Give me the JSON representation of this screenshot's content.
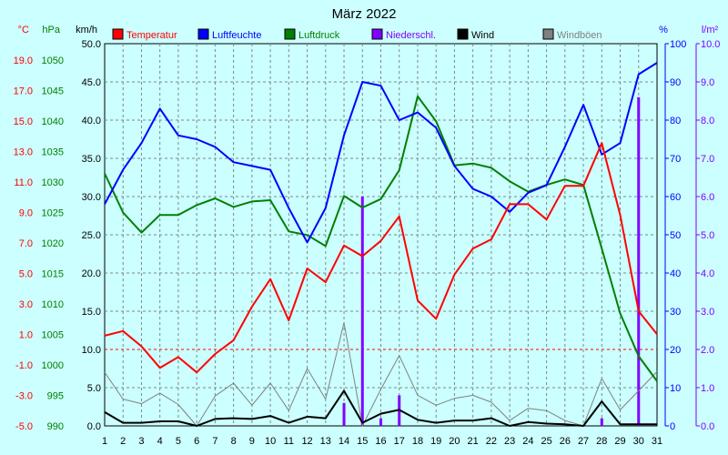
{
  "chart_data": {
    "type": "line",
    "title": "März 2022",
    "x": [
      1,
      2,
      3,
      4,
      5,
      6,
      7,
      8,
      9,
      10,
      11,
      12,
      13,
      14,
      15,
      16,
      17,
      18,
      19,
      20,
      21,
      22,
      23,
      24,
      25,
      26,
      27,
      28,
      29,
      30,
      31
    ],
    "axes": {
      "temperature": {
        "unit": "°C",
        "ticks": [
          "19.0",
          "17.0",
          "15.0",
          "13.0",
          "11.0",
          "9.0",
          "7.0",
          "5.0",
          "3.0",
          "1.0",
          "-1.0",
          "-3.0",
          "-5.0"
        ],
        "range": [
          -5,
          20
        ],
        "color": "#ff0000"
      },
      "pressure": {
        "unit": "hPa",
        "ticks": [
          "1050",
          "1045",
          "1040",
          "1035",
          "1030",
          "1025",
          "1020",
          "1015",
          "1010",
          "1005",
          "1000",
          "995",
          "990"
        ],
        "range": [
          990,
          1052.5
        ],
        "color": "#008000"
      },
      "wind": {
        "unit": "km/h",
        "ticks": [
          "50.0",
          "45.0",
          "40.0",
          "35.0",
          "30.0",
          "25.0",
          "20.0",
          "15.0",
          "10.0",
          "5.0",
          "0.0"
        ],
        "range": [
          0,
          50
        ],
        "color": "#000000"
      },
      "humidity": {
        "unit": "%",
        "ticks": [
          "100",
          "90",
          "80",
          "70",
          "60",
          "50",
          "40",
          "30",
          "20",
          "10",
          "0"
        ],
        "range": [
          0,
          100
        ],
        "color": "#0000ff"
      },
      "precipitation": {
        "unit": "l/m²",
        "ticks": [
          "10.0",
          "9.0",
          "8.0",
          "7.0",
          "6.0",
          "5.0",
          "4.0",
          "3.0",
          "2.0",
          "1.0",
          "0.0"
        ],
        "range": [
          0,
          10
        ],
        "color": "#8000ff"
      }
    },
    "series": [
      {
        "name": "Temperatur",
        "axis": "temperature",
        "color": "#ff0000",
        "kind": "line",
        "values": [
          0.9,
          1.2,
          0.2,
          -1.2,
          -0.5,
          -1.5,
          -0.3,
          0.6,
          2.8,
          4.6,
          1.9,
          5.3,
          4.4,
          6.8,
          6.1,
          7.1,
          8.7,
          3.2,
          2.0,
          4.9,
          6.6,
          7.2,
          9.5,
          9.5,
          8.5,
          10.7,
          10.7,
          13.5,
          8.8,
          2.5,
          1.0
        ]
      },
      {
        "name": "Luftfeuchte",
        "axis": "humidity",
        "color": "#0000ff",
        "kind": "line",
        "values": [
          58,
          67,
          74,
          83,
          76,
          75,
          73,
          69,
          68,
          67,
          57,
          48,
          57,
          76,
          90,
          89,
          80,
          82,
          78,
          68,
          62,
          60,
          56,
          61,
          63,
          73,
          84,
          71,
          74,
          92,
          95
        ]
      },
      {
        "name": "Luftdruck",
        "axis": "pressure",
        "color": "#008000",
        "kind": "line",
        "values": [
          1031.3,
          1024.9,
          1021.6,
          1024.5,
          1024.5,
          1026.1,
          1027.2,
          1025.8,
          1026.7,
          1026.9,
          1021.8,
          1021.2,
          1019.4,
          1027.6,
          1025.7,
          1027.1,
          1031.8,
          1043.9,
          1039.8,
          1032.6,
          1032.9,
          1032.2,
          1030.0,
          1028.3,
          1029.4,
          1030.3,
          1029.4,
          1019.0,
          1008.4,
          1001.4,
          997.3
        ]
      },
      {
        "name": "Niederschl.",
        "axis": "precipitation",
        "color": "#8000ff",
        "kind": "bars",
        "values": [
          0,
          0,
          0,
          0,
          0,
          0,
          0,
          0,
          0,
          0,
          0,
          0,
          0,
          0.6,
          6.0,
          0.2,
          0.8,
          0,
          0,
          0,
          0,
          0,
          0,
          0,
          0,
          0,
          0,
          0.2,
          0,
          8.6,
          0
        ]
      },
      {
        "name": "Wind",
        "axis": "wind",
        "color": "#000000",
        "kind": "line",
        "values": [
          1.8,
          0.4,
          0.4,
          0.6,
          0.6,
          0.0,
          0.9,
          1.0,
          0.9,
          1.3,
          0.4,
          1.2,
          1.0,
          4.6,
          0.4,
          1.6,
          2.1,
          0.8,
          0.4,
          0.7,
          0.7,
          1.0,
          0.0,
          0.5,
          0.3,
          0.2,
          0.0,
          3.2,
          0.2,
          0.2,
          0.2
        ]
      },
      {
        "name": "Windböen",
        "axis": "wind",
        "color": "#808080",
        "kind": "line",
        "values": [
          7.0,
          3.5,
          2.9,
          4.3,
          2.8,
          0.0,
          3.9,
          5.6,
          2.7,
          5.6,
          2.0,
          7.5,
          3.5,
          13.5,
          0.0,
          4.8,
          9.2,
          4.0,
          2.7,
          3.6,
          4.0,
          3.1,
          0.7,
          2.3,
          2.0,
          0.7,
          0.0,
          6.2,
          2.1,
          4.6,
          7.1
        ]
      }
    ],
    "grid": true,
    "legend": "top"
  }
}
